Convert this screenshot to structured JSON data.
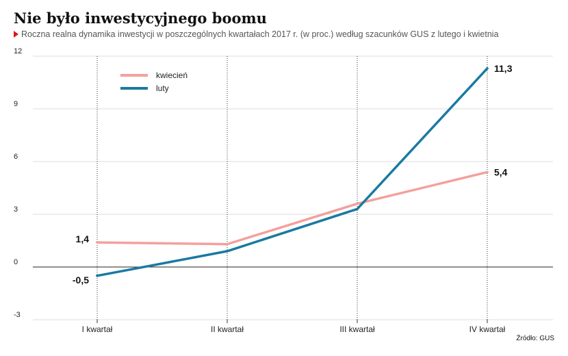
{
  "title": "Nie było inwestycyjnego boomu",
  "subtitle": "Roczna realna dynamika inwestycji w poszczególnych kwartałach 2017 r. (w proc.) według szacunków GUS z lutego i kwietnia",
  "source": "Źródło: GUS",
  "chart_data": {
    "type": "line",
    "title": "Nie było inwestycyjnego boomu",
    "subtitle": "Roczna realna dynamika inwestycji w poszczególnych kwartałach 2017 r. (w proc.) według szacunków GUS z lutego i kwietnia",
    "xlabel": "",
    "ylabel": "",
    "categories": [
      "I kwartał",
      "II kwartał",
      "III kwartał",
      "IV kwartał"
    ],
    "ylim": [
      -3,
      12
    ],
    "yticks": [
      -3,
      0,
      3,
      6,
      9,
      12
    ],
    "grid": "vertical dotted at categories",
    "legend_position": "top-left",
    "series": [
      {
        "name": "kwiecień",
        "color": "#f4a09c",
        "values": [
          1.4,
          1.3,
          3.6,
          5.4
        ],
        "labels": [
          "1,4",
          "",
          "",
          "5,4"
        ]
      },
      {
        "name": "luty",
        "color": "#1a7aa1",
        "values": [
          -0.5,
          0.9,
          3.3,
          11.3
        ],
        "labels": [
          "-0,5",
          "",
          "",
          "11,3"
        ]
      }
    ]
  }
}
